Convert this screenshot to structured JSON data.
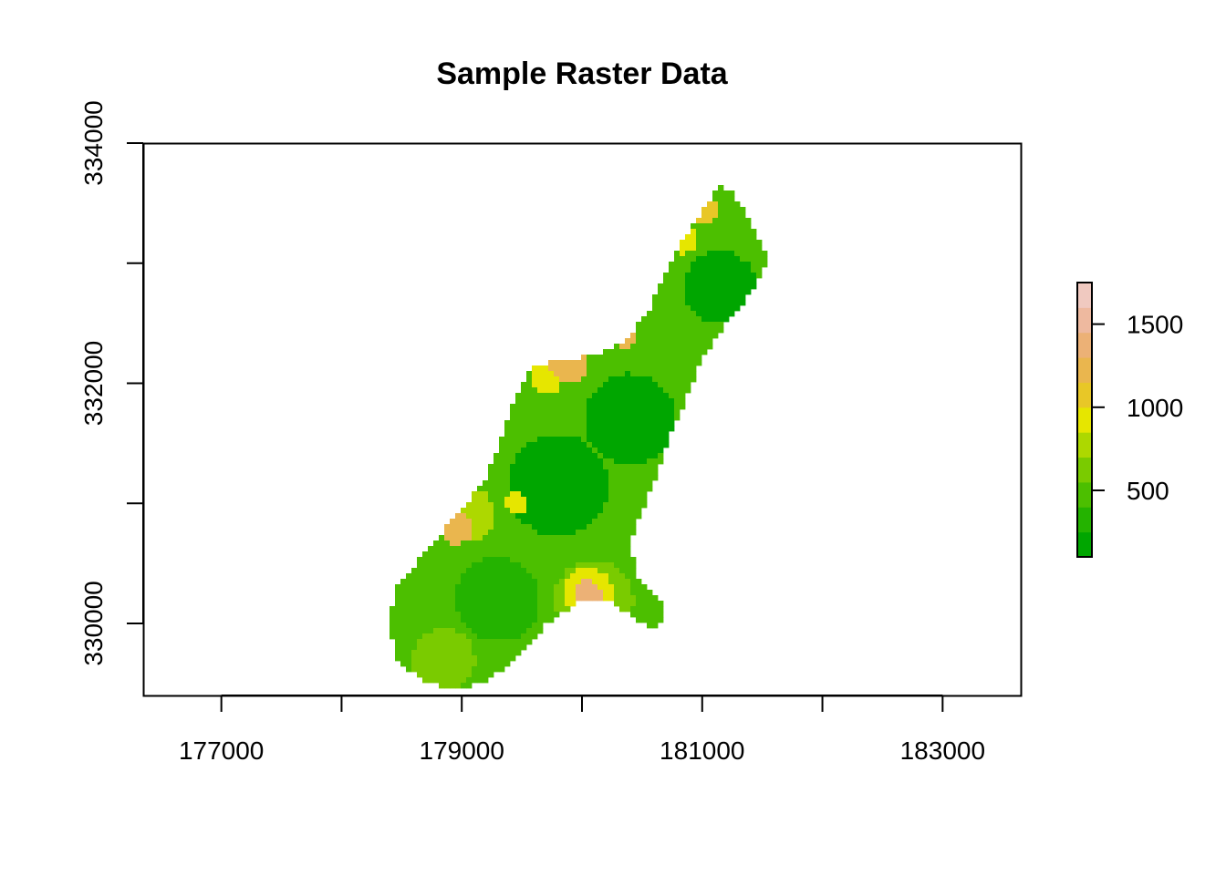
{
  "chart_data": {
    "type": "heatmap",
    "title": "Sample Raster Data",
    "xlabel": "",
    "ylabel": "",
    "xlim": [
      176350,
      183650
    ],
    "ylim": [
      329400,
      334000
    ],
    "x_ticks": [
      177000,
      178000,
      179000,
      180000,
      181000,
      182000,
      183000
    ],
    "x_tick_labels": [
      "177000",
      "",
      "179000",
      "",
      "181000",
      "",
      "183000"
    ],
    "y_ticks": [
      330000,
      331000,
      332000,
      333000,
      334000
    ],
    "y_tick_labels": [
      "330000",
      "",
      "332000",
      "",
      "334000"
    ],
    "legend": {
      "position": "right",
      "range": [
        100,
        1750
      ],
      "ticks": [
        500,
        1000,
        1500
      ],
      "tick_labels": [
        "500",
        "1000",
        "1500"
      ],
      "breaks": [
        100,
        250,
        400,
        550,
        700,
        850,
        1000,
        1150,
        1300,
        1450,
        1600,
        1750
      ],
      "colors": [
        "#00A600",
        "#24B300",
        "#4CBF00",
        "#7ACB00",
        "#ADD800",
        "#E6E600",
        "#E8C727",
        "#EAB64E",
        "#ECB176",
        "#EEB99F",
        "#F0C9C0",
        "#F2F2F2"
      ]
    },
    "region_outline": [
      [
        181150,
        333650
      ],
      [
        181250,
        333600
      ],
      [
        181400,
        333350
      ],
      [
        181550,
        333050
      ],
      [
        181400,
        332750
      ],
      [
        181200,
        332500
      ],
      [
        181000,
        332200
      ],
      [
        180750,
        331600
      ],
      [
        180550,
        331050
      ],
      [
        180400,
        330700
      ],
      [
        180450,
        330400
      ],
      [
        180650,
        330200
      ],
      [
        180700,
        330050
      ],
      [
        180600,
        329950
      ],
      [
        180350,
        330100
      ],
      [
        180200,
        330200
      ],
      [
        180000,
        330200
      ],
      [
        179700,
        330000
      ],
      [
        179500,
        329750
      ],
      [
        179250,
        329550
      ],
      [
        179000,
        329450
      ],
      [
        178700,
        329500
      ],
      [
        178450,
        329700
      ],
      [
        178400,
        330000
      ],
      [
        178450,
        330300
      ],
      [
        178700,
        330600
      ],
      [
        178950,
        330900
      ],
      [
        179200,
        331200
      ],
      [
        179350,
        331600
      ],
      [
        179450,
        331900
      ],
      [
        179600,
        332150
      ],
      [
        179900,
        332200
      ],
      [
        180150,
        332250
      ],
      [
        180350,
        332350
      ],
      [
        180550,
        332600
      ],
      [
        180750,
        333050
      ],
      [
        180950,
        333350
      ],
      [
        181150,
        333650
      ]
    ],
    "zones": [
      {
        "x": 180050,
        "y": 330250,
        "r": 110,
        "value": 1400
      },
      {
        "x": 180050,
        "y": 330250,
        "r": 210,
        "value": 900
      },
      {
        "x": 180100,
        "y": 330200,
        "r": 330,
        "value": 600
      },
      {
        "x": 179900,
        "y": 332150,
        "r": 160,
        "value": 1250
      },
      {
        "x": 179700,
        "y": 332050,
        "r": 140,
        "value": 950
      },
      {
        "x": 180350,
        "y": 332400,
        "r": 110,
        "value": 1150
      },
      {
        "x": 181000,
        "y": 333450,
        "r": 130,
        "value": 1100
      },
      {
        "x": 180850,
        "y": 333200,
        "r": 120,
        "value": 850
      },
      {
        "x": 178950,
        "y": 330800,
        "r": 140,
        "value": 1200
      },
      {
        "x": 179050,
        "y": 330900,
        "r": 230,
        "value": 800
      },
      {
        "x": 179450,
        "y": 331000,
        "r": 90,
        "value": 850
      },
      {
        "x": 178850,
        "y": 329700,
        "r": 260,
        "value": 550
      },
      {
        "x": 179200,
        "y": 329600,
        "r": 200,
        "value": 500
      },
      {
        "x": 179800,
        "y": 331150,
        "r": 420,
        "value": 200
      },
      {
        "x": 180400,
        "y": 331700,
        "r": 380,
        "value": 200
      },
      {
        "x": 181150,
        "y": 332800,
        "r": 300,
        "value": 200
      },
      {
        "x": 179300,
        "y": 330200,
        "r": 350,
        "value": 250
      }
    ],
    "base_value": 400,
    "grid": false
  }
}
